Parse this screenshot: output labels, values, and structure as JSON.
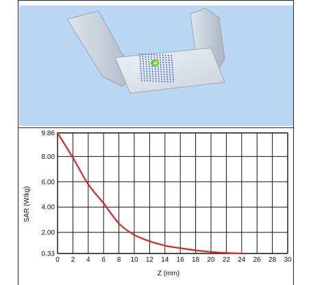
{
  "colors": {
    "scene_background": "#b9d6f2",
    "phantom": "#e4e9ef",
    "grid": "#111111",
    "curve": "#e02424"
  },
  "scene": {
    "icon": "phantom-3d-view"
  },
  "chart_data": {
    "type": "line",
    "title": "",
    "xlabel": "Z (mm)",
    "ylabel": "SAR (W/kg)",
    "xlim": [
      0,
      30
    ],
    "ylim": [
      0.33,
      9.86
    ],
    "x_ticks": [
      "0",
      "2",
      "4",
      "6",
      "8",
      "10",
      "12",
      "14",
      "16",
      "18",
      "20",
      "22",
      "24",
      "26",
      "28",
      "30"
    ],
    "y_ticks": [
      "9.86",
      "8.00",
      "6.00",
      "4.00",
      "2.00",
      "0.33"
    ],
    "grid": true,
    "series": [
      {
        "x": [
          0,
          2,
          4,
          6,
          8,
          10,
          12,
          14,
          16,
          18,
          20,
          22,
          24
        ],
        "y": [
          9.86,
          7.9,
          5.8,
          4.3,
          2.7,
          1.8,
          1.3,
          0.95,
          0.75,
          0.58,
          0.45,
          0.38,
          0.33
        ]
      }
    ]
  }
}
